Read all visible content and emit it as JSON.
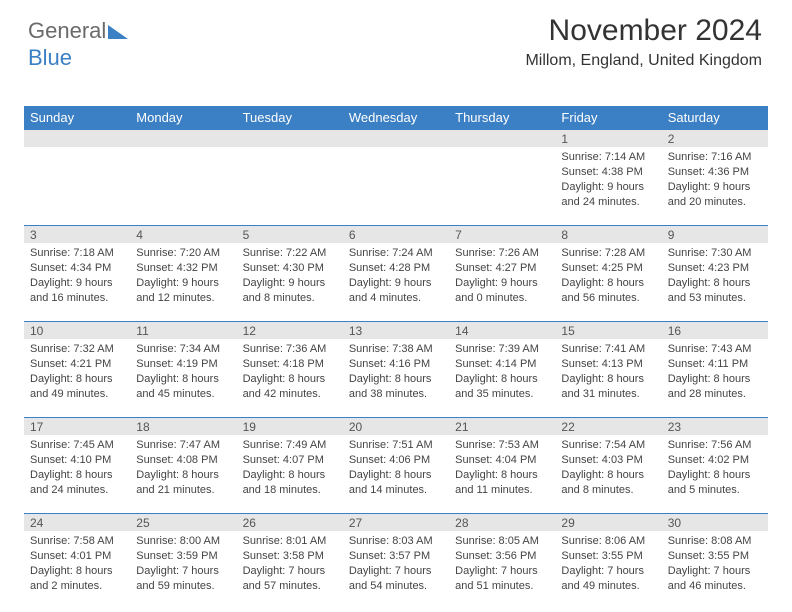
{
  "logo": {
    "word1": "General",
    "word2": "Blue"
  },
  "header": {
    "title": "November 2024",
    "location": "Millom, England, United Kingdom"
  },
  "style": {
    "header_bg": "#3b7fc4",
    "date_bg": "#e6e6e6",
    "border_color": "#3b7fc4",
    "text_color": "#444444",
    "title_fontsize": 30,
    "location_fontsize": 16,
    "cell_fontsize": 11
  },
  "daynames": [
    "Sunday",
    "Monday",
    "Tuesday",
    "Wednesday",
    "Thursday",
    "Friday",
    "Saturday"
  ],
  "weeks": [
    [
      null,
      null,
      null,
      null,
      null,
      {
        "d": "1",
        "sr": "Sunrise: 7:14 AM",
        "ss": "Sunset: 4:38 PM",
        "dl1": "Daylight: 9 hours",
        "dl2": "and 24 minutes."
      },
      {
        "d": "2",
        "sr": "Sunrise: 7:16 AM",
        "ss": "Sunset: 4:36 PM",
        "dl1": "Daylight: 9 hours",
        "dl2": "and 20 minutes."
      }
    ],
    [
      {
        "d": "3",
        "sr": "Sunrise: 7:18 AM",
        "ss": "Sunset: 4:34 PM",
        "dl1": "Daylight: 9 hours",
        "dl2": "and 16 minutes."
      },
      {
        "d": "4",
        "sr": "Sunrise: 7:20 AM",
        "ss": "Sunset: 4:32 PM",
        "dl1": "Daylight: 9 hours",
        "dl2": "and 12 minutes."
      },
      {
        "d": "5",
        "sr": "Sunrise: 7:22 AM",
        "ss": "Sunset: 4:30 PM",
        "dl1": "Daylight: 9 hours",
        "dl2": "and 8 minutes."
      },
      {
        "d": "6",
        "sr": "Sunrise: 7:24 AM",
        "ss": "Sunset: 4:28 PM",
        "dl1": "Daylight: 9 hours",
        "dl2": "and 4 minutes."
      },
      {
        "d": "7",
        "sr": "Sunrise: 7:26 AM",
        "ss": "Sunset: 4:27 PM",
        "dl1": "Daylight: 9 hours",
        "dl2": "and 0 minutes."
      },
      {
        "d": "8",
        "sr": "Sunrise: 7:28 AM",
        "ss": "Sunset: 4:25 PM",
        "dl1": "Daylight: 8 hours",
        "dl2": "and 56 minutes."
      },
      {
        "d": "9",
        "sr": "Sunrise: 7:30 AM",
        "ss": "Sunset: 4:23 PM",
        "dl1": "Daylight: 8 hours",
        "dl2": "and 53 minutes."
      }
    ],
    [
      {
        "d": "10",
        "sr": "Sunrise: 7:32 AM",
        "ss": "Sunset: 4:21 PM",
        "dl1": "Daylight: 8 hours",
        "dl2": "and 49 minutes."
      },
      {
        "d": "11",
        "sr": "Sunrise: 7:34 AM",
        "ss": "Sunset: 4:19 PM",
        "dl1": "Daylight: 8 hours",
        "dl2": "and 45 minutes."
      },
      {
        "d": "12",
        "sr": "Sunrise: 7:36 AM",
        "ss": "Sunset: 4:18 PM",
        "dl1": "Daylight: 8 hours",
        "dl2": "and 42 minutes."
      },
      {
        "d": "13",
        "sr": "Sunrise: 7:38 AM",
        "ss": "Sunset: 4:16 PM",
        "dl1": "Daylight: 8 hours",
        "dl2": "and 38 minutes."
      },
      {
        "d": "14",
        "sr": "Sunrise: 7:39 AM",
        "ss": "Sunset: 4:14 PM",
        "dl1": "Daylight: 8 hours",
        "dl2": "and 35 minutes."
      },
      {
        "d": "15",
        "sr": "Sunrise: 7:41 AM",
        "ss": "Sunset: 4:13 PM",
        "dl1": "Daylight: 8 hours",
        "dl2": "and 31 minutes."
      },
      {
        "d": "16",
        "sr": "Sunrise: 7:43 AM",
        "ss": "Sunset: 4:11 PM",
        "dl1": "Daylight: 8 hours",
        "dl2": "and 28 minutes."
      }
    ],
    [
      {
        "d": "17",
        "sr": "Sunrise: 7:45 AM",
        "ss": "Sunset: 4:10 PM",
        "dl1": "Daylight: 8 hours",
        "dl2": "and 24 minutes."
      },
      {
        "d": "18",
        "sr": "Sunrise: 7:47 AM",
        "ss": "Sunset: 4:08 PM",
        "dl1": "Daylight: 8 hours",
        "dl2": "and 21 minutes."
      },
      {
        "d": "19",
        "sr": "Sunrise: 7:49 AM",
        "ss": "Sunset: 4:07 PM",
        "dl1": "Daylight: 8 hours",
        "dl2": "and 18 minutes."
      },
      {
        "d": "20",
        "sr": "Sunrise: 7:51 AM",
        "ss": "Sunset: 4:06 PM",
        "dl1": "Daylight: 8 hours",
        "dl2": "and 14 minutes."
      },
      {
        "d": "21",
        "sr": "Sunrise: 7:53 AM",
        "ss": "Sunset: 4:04 PM",
        "dl1": "Daylight: 8 hours",
        "dl2": "and 11 minutes."
      },
      {
        "d": "22",
        "sr": "Sunrise: 7:54 AM",
        "ss": "Sunset: 4:03 PM",
        "dl1": "Daylight: 8 hours",
        "dl2": "and 8 minutes."
      },
      {
        "d": "23",
        "sr": "Sunrise: 7:56 AM",
        "ss": "Sunset: 4:02 PM",
        "dl1": "Daylight: 8 hours",
        "dl2": "and 5 minutes."
      }
    ],
    [
      {
        "d": "24",
        "sr": "Sunrise: 7:58 AM",
        "ss": "Sunset: 4:01 PM",
        "dl1": "Daylight: 8 hours",
        "dl2": "and 2 minutes."
      },
      {
        "d": "25",
        "sr": "Sunrise: 8:00 AM",
        "ss": "Sunset: 3:59 PM",
        "dl1": "Daylight: 7 hours",
        "dl2": "and 59 minutes."
      },
      {
        "d": "26",
        "sr": "Sunrise: 8:01 AM",
        "ss": "Sunset: 3:58 PM",
        "dl1": "Daylight: 7 hours",
        "dl2": "and 57 minutes."
      },
      {
        "d": "27",
        "sr": "Sunrise: 8:03 AM",
        "ss": "Sunset: 3:57 PM",
        "dl1": "Daylight: 7 hours",
        "dl2": "and 54 minutes."
      },
      {
        "d": "28",
        "sr": "Sunrise: 8:05 AM",
        "ss": "Sunset: 3:56 PM",
        "dl1": "Daylight: 7 hours",
        "dl2": "and 51 minutes."
      },
      {
        "d": "29",
        "sr": "Sunrise: 8:06 AM",
        "ss": "Sunset: 3:55 PM",
        "dl1": "Daylight: 7 hours",
        "dl2": "and 49 minutes."
      },
      {
        "d": "30",
        "sr": "Sunrise: 8:08 AM",
        "ss": "Sunset: 3:55 PM",
        "dl1": "Daylight: 7 hours",
        "dl2": "and 46 minutes."
      }
    ]
  ]
}
